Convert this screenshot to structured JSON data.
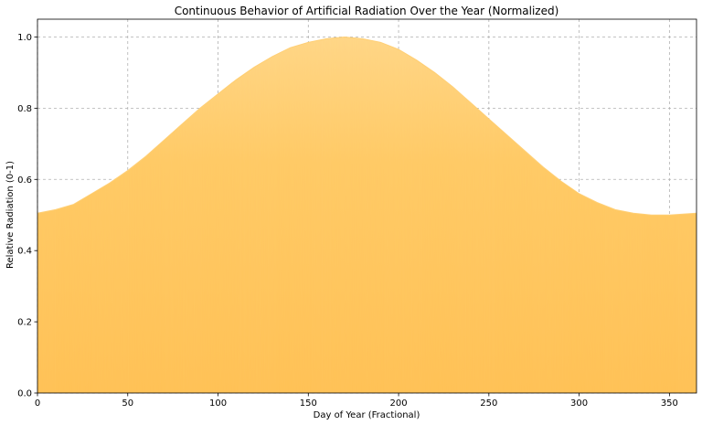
{
  "chart_data": {
    "type": "area",
    "title": "Continuous Behavior of Artificial Radiation Over the Year (Normalized)",
    "xlabel": "Day of Year (Fractional)",
    "ylabel": "Relative Radiation (0-1)",
    "xlim": [
      0,
      365
    ],
    "ylim": [
      0,
      1.05
    ],
    "xticks": [
      0,
      50,
      100,
      150,
      200,
      250,
      300,
      350
    ],
    "yticks": [
      0.0,
      0.2,
      0.4,
      0.6,
      0.8,
      1.0
    ],
    "xtick_labels": [
      "0",
      "50",
      "100",
      "150",
      "200",
      "250",
      "300",
      "350"
    ],
    "ytick_labels": [
      "0.0",
      "0.2",
      "0.4",
      "0.6",
      "0.8",
      "1.0"
    ],
    "grid": true,
    "color": "#ffb732",
    "series": [
      {
        "x": [
          0,
          10,
          20,
          30,
          40,
          50,
          60,
          70,
          80,
          90,
          100,
          110,
          120,
          130,
          140,
          150,
          160,
          170,
          180,
          190,
          200,
          210,
          220,
          230,
          240,
          250,
          260,
          270,
          280,
          290,
          300,
          310,
          320,
          330,
          340,
          350,
          365
        ],
        "values": [
          0.505,
          0.515,
          0.53,
          0.56,
          0.59,
          0.625,
          0.665,
          0.71,
          0.755,
          0.8,
          0.84,
          0.88,
          0.915,
          0.945,
          0.97,
          0.985,
          0.995,
          1.0,
          0.995,
          0.985,
          0.965,
          0.935,
          0.9,
          0.86,
          0.815,
          0.77,
          0.725,
          0.68,
          0.635,
          0.595,
          0.56,
          0.535,
          0.515,
          0.505,
          0.5,
          0.5,
          0.505
        ]
      }
    ]
  }
}
